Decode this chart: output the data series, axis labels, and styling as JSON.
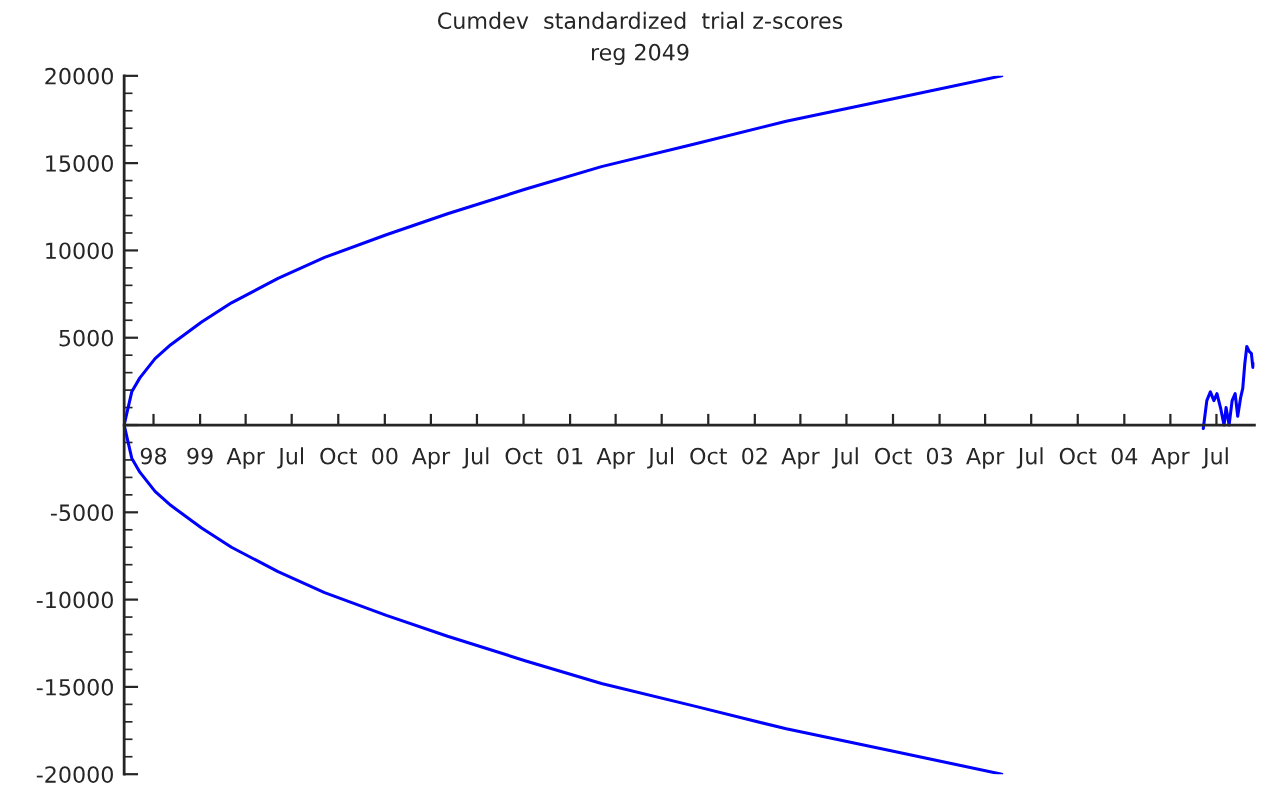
{
  "chart_data": {
    "type": "line",
    "title": "Cumdev  standardized  trial z-scores",
    "subtitle": "reg 2049",
    "series": [
      {
        "color": "#0000ff",
        "x": [
          "2003-05-04",
          "2002-10-04",
          "2002-03-04",
          "2001-09-04",
          "2001-03-04",
          "2000-10-04",
          "2000-05-04",
          "2000-01-04",
          "1999-09-04",
          "1999-06-04",
          "1999-03-04",
          "1999-01-04",
          "1998-11-04",
          "1998-10-04",
          "1998-09-04",
          "1998-08-19",
          "1998-08-04",
          "1998-08-19",
          "1998-09-04",
          "1998-10-04",
          "1998-11-04",
          "1999-01-04",
          "1999-03-04",
          "1999-06-04",
          "1999-09-04",
          "2000-01-04",
          "2000-05-04",
          "2000-10-04",
          "2001-03-04",
          "2001-09-04",
          "2002-03-04",
          "2002-10-04",
          "2003-05-04"
        ],
        "values": [
          -20000,
          -18700,
          -17400,
          -16100,
          -14800,
          -13500,
          -12100,
          -10900,
          -9600,
          -8400,
          -7000,
          -5900,
          -4600,
          -3800,
          -2700,
          -1900,
          0,
          1900,
          2700,
          3800,
          4600,
          5900,
          7000,
          8400,
          9600,
          10900,
          12100,
          13500,
          14800,
          16100,
          17400,
          18700,
          20000
        ]
      },
      {
        "color": "#0000ff",
        "x": [
          "2004-06-05",
          "2004-06-12",
          "2004-06-19",
          "2004-06-26",
          "2004-07-02",
          "2004-07-09",
          "2004-07-16",
          "2004-07-20",
          "2004-07-26",
          "2004-08-01",
          "2004-08-07",
          "2004-08-12",
          "2004-08-18",
          "2004-08-22",
          "2004-08-26",
          "2004-08-30",
          "2004-09-04",
          "2004-09-08",
          "2004-09-11",
          "2004-09-14"
        ],
        "values": [
          -200,
          1400,
          1900,
          1400,
          1800,
          1000,
          0,
          1000,
          0,
          1400,
          1800,
          500,
          1600,
          2100,
          3500,
          4500,
          4200,
          4100,
          3300,
          3500
        ]
      }
    ],
    "xlim": [
      "1998-08-04",
      "2004-09-14"
    ],
    "xticks": [
      {
        "value": "1998-10-01",
        "label": "98"
      },
      {
        "value": "1999-01-01",
        "label": "99"
      },
      {
        "value": "1999-04-01",
        "label": "Apr"
      },
      {
        "value": "1999-07-01",
        "label": "Jul"
      },
      {
        "value": "1999-10-01",
        "label": "Oct"
      },
      {
        "value": "2000-01-01",
        "label": "00"
      },
      {
        "value": "2000-04-01",
        "label": "Apr"
      },
      {
        "value": "2000-07-01",
        "label": "Jul"
      },
      {
        "value": "2000-10-01",
        "label": "Oct"
      },
      {
        "value": "2001-01-01",
        "label": "01"
      },
      {
        "value": "2001-04-01",
        "label": "Apr"
      },
      {
        "value": "2001-07-01",
        "label": "Jul"
      },
      {
        "value": "2001-10-01",
        "label": "Oct"
      },
      {
        "value": "2002-01-01",
        "label": "02"
      },
      {
        "value": "2002-04-01",
        "label": "Apr"
      },
      {
        "value": "2002-07-01",
        "label": "Jul"
      },
      {
        "value": "2002-10-01",
        "label": "Oct"
      },
      {
        "value": "2003-01-01",
        "label": "03"
      },
      {
        "value": "2003-04-01",
        "label": "Apr"
      },
      {
        "value": "2003-07-01",
        "label": "Jul"
      },
      {
        "value": "2003-10-01",
        "label": "Oct"
      },
      {
        "value": "2004-01-01",
        "label": "04"
      },
      {
        "value": "2004-04-01",
        "label": "Apr"
      },
      {
        "value": "2004-07-01",
        "label": "Jul"
      }
    ],
    "ylim": [
      -20000,
      20000
    ],
    "yticks": [
      -20000,
      -15000,
      -10000,
      -5000,
      {
        "value": 0,
        "label": null
      },
      5000,
      10000,
      15000,
      20000
    ],
    "grid": false,
    "legend": false,
    "marker": "none",
    "line_style": "solid"
  }
}
